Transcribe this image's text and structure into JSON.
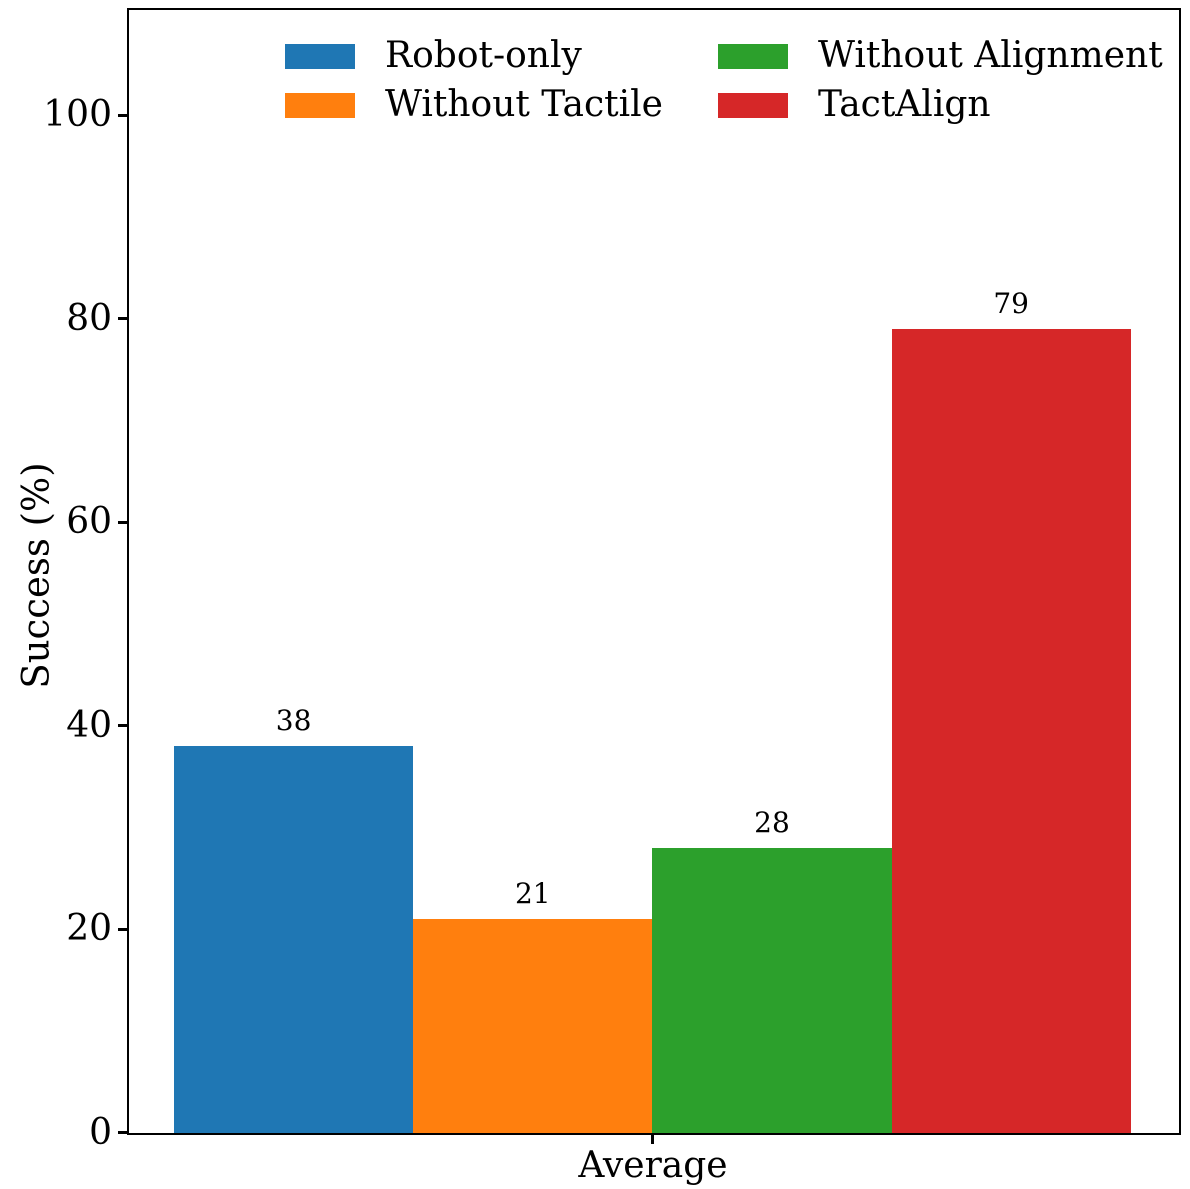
{
  "chart_data": {
    "type": "bar",
    "title": "",
    "categories": [
      "Average"
    ],
    "series": [
      {
        "name": "Robot-only",
        "color": "#1f77b4",
        "values": [
          38
        ]
      },
      {
        "name": "Without Tactile",
        "color": "#ff7f0e",
        "values": [
          21
        ]
      },
      {
        "name": "Without Alignment",
        "color": "#2ca02c",
        "values": [
          28
        ]
      },
      {
        "name": "TactAlign",
        "color": "#d62728",
        "values": [
          79
        ]
      }
    ],
    "bar_value_labels": [
      "38",
      "21",
      "28",
      "79"
    ],
    "xlabel": "",
    "ylabel": "Success (%)",
    "ylim": [
      0,
      110.3
    ],
    "yticks": [
      0,
      20,
      40,
      60,
      80,
      100
    ],
    "grid": false,
    "legend_position": "upper center, 2 columns, no frame",
    "axis_color": "#000000",
    "background_color": "#ffffff"
  }
}
